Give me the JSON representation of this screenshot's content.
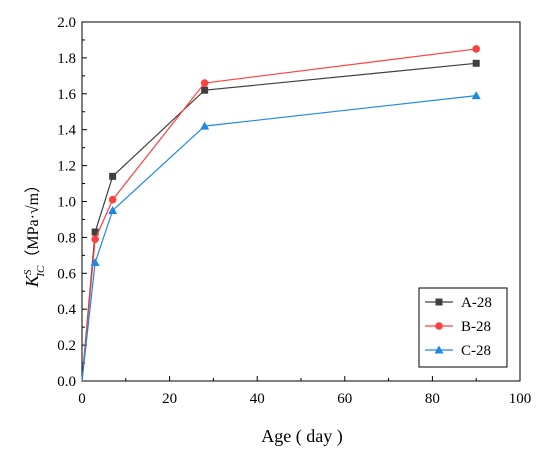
{
  "chart_data": {
    "type": "line",
    "xlabel": "Age ( day )",
    "ylabel": {
      "symbol": "K",
      "superscript": "S",
      "subscript": "IC",
      "unit_open": "（MPa·",
      "unit_root": "√m",
      "unit_close": "）"
    },
    "xlim": [
      0,
      100
    ],
    "ylim": [
      0.0,
      2.0
    ],
    "xticks": [
      0,
      20,
      40,
      60,
      80,
      100
    ],
    "yticks": [
      0.0,
      0.2,
      0.4,
      0.6,
      0.8,
      1.0,
      1.2,
      1.4,
      1.6,
      1.8,
      2.0
    ],
    "xtick_labels": [
      "0",
      "20",
      "40",
      "60",
      "80",
      "100"
    ],
    "ytick_labels": [
      "0.0",
      "0.2",
      "0.4",
      "0.6",
      "0.8",
      "1.0",
      "1.2",
      "1.4",
      "1.6",
      "1.8",
      "2.0"
    ],
    "grid": false,
    "legend_position": "bottom-right",
    "series": [
      {
        "name": "A-28",
        "color": "#404040",
        "marker": "square",
        "x": [
          0,
          3,
          7,
          28,
          90
        ],
        "y": [
          0,
          0.83,
          1.14,
          1.62,
          1.77
        ]
      },
      {
        "name": "B-28",
        "color": "#ff4040",
        "marker": "circle",
        "x": [
          0,
          3,
          7,
          28,
          90
        ],
        "y": [
          0,
          0.79,
          1.01,
          1.66,
          1.85
        ]
      },
      {
        "name": "C-28",
        "color": "#1e88e5",
        "marker": "triangle",
        "x": [
          0,
          3,
          7,
          28,
          90
        ],
        "y": [
          0,
          0.66,
          0.95,
          1.42,
          1.59
        ]
      }
    ]
  }
}
